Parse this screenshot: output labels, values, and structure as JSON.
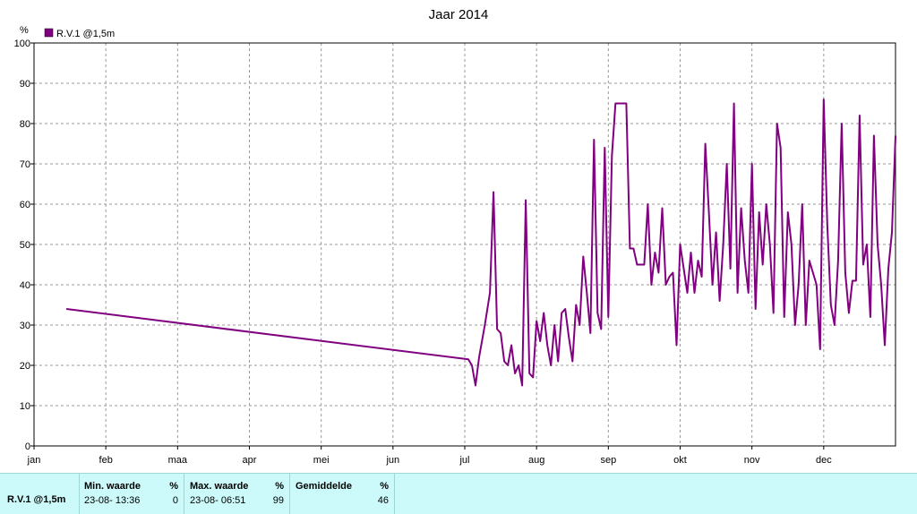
{
  "chart_data": {
    "type": "line",
    "title": "Jaar 2014",
    "unit_label": "%",
    "ylim": [
      0,
      100
    ],
    "yticks": [
      0,
      10,
      20,
      30,
      40,
      50,
      60,
      70,
      80,
      90,
      100
    ],
    "x_ticks": [
      "jan",
      "feb",
      "maa",
      "apr",
      "mei",
      "jun",
      "jul",
      "aug",
      "sep",
      "okt",
      "nov",
      "dec"
    ],
    "grid": true,
    "legend_position": "top-left",
    "series": [
      {
        "name": "R.V.1 @1,5m",
        "color": "#800080",
        "x": [
          0.45,
          6.05,
          6.1,
          6.15,
          6.2,
          6.28,
          6.35,
          6.4,
          6.45,
          6.5,
          6.55,
          6.6,
          6.65,
          6.7,
          6.75,
          6.8,
          6.85,
          6.9,
          6.95,
          7.0,
          7.05,
          7.1,
          7.15,
          7.2,
          7.25,
          7.3,
          7.35,
          7.4,
          7.45,
          7.5,
          7.55,
          7.6,
          7.65,
          7.7,
          7.75,
          7.8,
          7.85,
          7.9,
          7.95,
          8.0,
          8.05,
          8.1,
          8.15,
          8.2,
          8.25,
          8.3,
          8.35,
          8.4,
          8.45,
          8.5,
          8.55,
          8.6,
          8.65,
          8.7,
          8.75,
          8.8,
          8.85,
          8.9,
          8.95,
          9.0,
          9.1,
          9.15,
          9.2,
          9.25,
          9.3,
          9.35,
          9.4,
          9.45,
          9.5,
          9.55,
          9.6,
          9.65,
          9.7,
          9.75,
          9.8,
          9.85,
          9.9,
          9.95,
          10.0,
          10.05,
          10.1,
          10.15,
          10.2,
          10.25,
          10.3,
          10.35,
          10.4,
          10.45,
          10.5,
          10.55,
          10.6,
          10.65,
          10.7,
          10.75,
          10.8,
          10.85,
          10.9,
          10.95,
          11.0,
          11.05,
          11.1,
          11.15,
          11.2,
          11.25,
          11.3,
          11.35,
          11.4,
          11.45,
          11.5,
          11.55,
          11.6,
          11.65,
          11.7,
          11.75,
          11.8,
          11.85,
          11.9,
          11.95,
          12.0
        ],
        "values": [
          34,
          21.5,
          20,
          15,
          22,
          30,
          38,
          63,
          29,
          28,
          21,
          20,
          25,
          18,
          20,
          15,
          61,
          18,
          17,
          31,
          26,
          33,
          25,
          20,
          30,
          21,
          33,
          34,
          27,
          21,
          35,
          30,
          47,
          38,
          28,
          76,
          33,
          29,
          74,
          32,
          72,
          85,
          85,
          85,
          85,
          49,
          49,
          45,
          45,
          45,
          60,
          40,
          48,
          43,
          59,
          40,
          42,
          43,
          25,
          50,
          38,
          48,
          38,
          46,
          42,
          75,
          58,
          40,
          53,
          36,
          50,
          70,
          44,
          85,
          38,
          59,
          46,
          38,
          70,
          34,
          58,
          45,
          60,
          50,
          33,
          80,
          74,
          32,
          58,
          50,
          30,
          40,
          60,
          30,
          46,
          43,
          40,
          24,
          86,
          55,
          35,
          30,
          46,
          80,
          43,
          33,
          41,
          41,
          82,
          45,
          50,
          32,
          77,
          50,
          40,
          25,
          44,
          53,
          77
        ]
      }
    ]
  },
  "stats": {
    "series_label": "R.V.1 @1,5m",
    "min_header": "Min. waarde",
    "min_unit": "%",
    "min_time": "23-08-  13:36",
    "min_value": "0",
    "max_header": "Max. waarde",
    "max_unit": "%",
    "max_time": "23-08-  06:51",
    "max_value": "99",
    "avg_header": "Gemiddelde",
    "avg_unit": "%",
    "avg_value": "46"
  },
  "colors": {
    "series": "#800080",
    "stats_background": "#ccfafa"
  }
}
